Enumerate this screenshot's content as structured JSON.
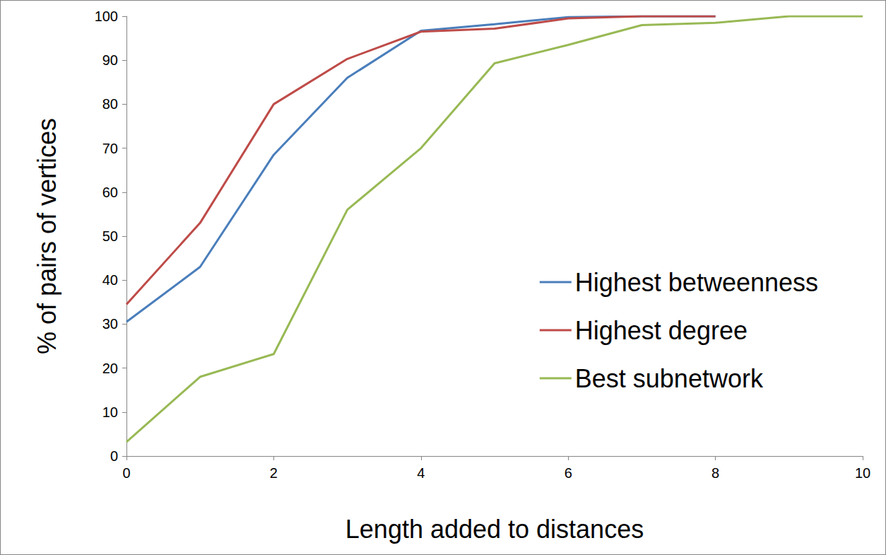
{
  "chart_data": {
    "type": "line",
    "x_label": "Length added to distances",
    "y_label": "% of pairs of vertices",
    "x": [
      0,
      1,
      2,
      3,
      4,
      5,
      6,
      7,
      8,
      9,
      10
    ],
    "series": [
      {
        "name": "Highest betweenness",
        "color": "#4a7ebb",
        "values": [
          30.5,
          43,
          68.5,
          86,
          96.7,
          98.2,
          99.8,
          100,
          100,
          null,
          null
        ]
      },
      {
        "name": "Highest degree",
        "color": "#be4b48",
        "values": [
          34.5,
          53,
          80,
          90.3,
          96.5,
          97.2,
          99.5,
          100,
          100,
          null,
          null
        ]
      },
      {
        "name": "Best subnetwork",
        "color": "#98b954",
        "values": [
          3.2,
          18,
          23.2,
          56,
          70,
          89.3,
          93.5,
          98,
          98.5,
          100,
          100
        ]
      }
    ],
    "xlim": [
      0,
      10
    ],
    "xticks": [
      0,
      2,
      4,
      6,
      8,
      10
    ],
    "ylim": [
      0,
      100
    ],
    "yticks": [
      0,
      10,
      20,
      30,
      40,
      50,
      60,
      70,
      80,
      90,
      100
    ],
    "grid": false,
    "legend": "lower right"
  }
}
